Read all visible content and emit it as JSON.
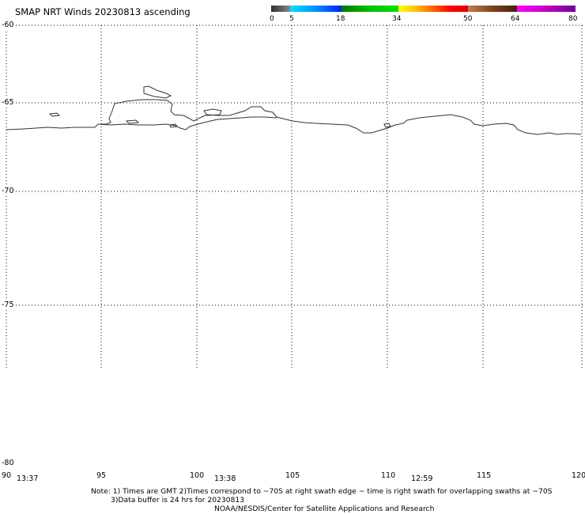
{
  "title": "SMAP NRT Winds 20230813 ascending",
  "colorbar": {
    "labels": [
      "0",
      "5",
      "18",
      "34",
      "50",
      "64",
      "80"
    ],
    "colors": [
      "#4a4a4a",
      "#00cfff",
      "#0066ff",
      "#1fa000",
      "#00d000",
      "#ffff00",
      "#ff8000",
      "#ff0000",
      "#8b4513",
      "#ff00ff",
      "#8000a0"
    ]
  },
  "latitudes": [
    "-60",
    "-65",
    "-70",
    "-75",
    "-80"
  ],
  "longitudes": [
    "90",
    "95",
    "100",
    "105",
    "110",
    "115",
    "120"
  ],
  "times": [
    "13:37",
    "13:38",
    "12:59"
  ],
  "notes": {
    "line1": "Note: 1) Times are GMT 2)Times correspond to ~70S at right swath edge ~ time is right swath for overlapping swaths at ~70S",
    "line2": "3)Data buffer is 24 hrs for 20230813",
    "line3": "NOAA/NESDIS/Center for Satellite Applications and Research"
  }
}
